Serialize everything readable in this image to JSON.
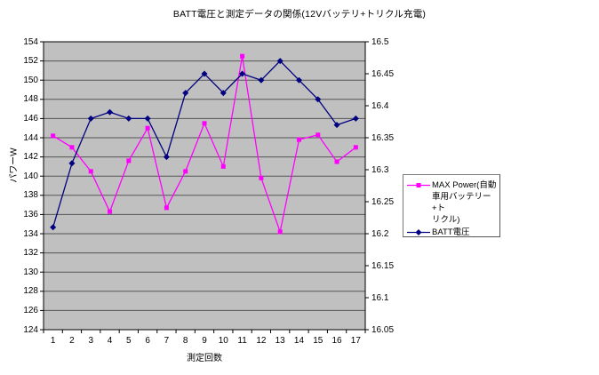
{
  "chart_data": {
    "type": "line",
    "title": "BATT電圧と測定データの関係(12Vバッテリ+トリクル充電)",
    "xlabel": "測定回数",
    "ylabel_left": "パワーW",
    "grid": true,
    "legend_position": "right-middle",
    "categories": [
      1,
      2,
      3,
      4,
      5,
      6,
      7,
      8,
      9,
      10,
      11,
      12,
      13,
      14,
      15,
      16,
      17
    ],
    "x_tick_labels": [
      "1",
      "2",
      "3",
      "4",
      "5",
      "6",
      "7",
      "8",
      "9",
      "10",
      "11",
      "12",
      "13",
      "14",
      "15",
      "16",
      "17"
    ],
    "left_axis": {
      "min": 124,
      "max": 154,
      "step": 2,
      "tick_labels": [
        "154",
        "152",
        "150",
        "148",
        "146",
        "144",
        "142",
        "140",
        "138",
        "136",
        "134",
        "132",
        "130",
        "128",
        "126",
        "124"
      ]
    },
    "right_axis": {
      "min": 16.05,
      "max": 16.5,
      "step": 0.05,
      "tick_labels": [
        "16.5",
        "16.45",
        "16.4",
        "16.35",
        "16.3",
        "16.25",
        "16.2",
        "16.15",
        "16.1",
        "16.05"
      ]
    },
    "series": [
      {
        "name": "MAX Power(自動車用バッテリー+トリクル)",
        "label_lines": [
          "MAX Power(自動",
          "車用バッテリー+ト",
          "リクル)"
        ],
        "axis": "left",
        "color": "#FF00FF",
        "marker": "square",
        "values": [
          144.2,
          143.0,
          140.5,
          136.3,
          141.6,
          145.0,
          136.7,
          140.5,
          145.5,
          141.0,
          152.5,
          139.8,
          134.2,
          143.8,
          144.3,
          141.5,
          143.0
        ]
      },
      {
        "name": "BATT電圧",
        "label_lines": [
          "BATT電圧"
        ],
        "axis": "right",
        "color": "#000080",
        "marker": "diamond",
        "values": [
          16.21,
          16.31,
          16.38,
          16.39,
          16.38,
          16.38,
          16.32,
          16.42,
          16.45,
          16.42,
          16.45,
          16.44,
          16.47,
          16.44,
          16.41,
          16.37,
          16.38
        ]
      }
    ],
    "colors": {
      "background": "#FFFFFF",
      "plot_bg": "#C0C0C0",
      "grid": "#555555",
      "plot_border": "#000000",
      "tick": "#000000"
    }
  }
}
